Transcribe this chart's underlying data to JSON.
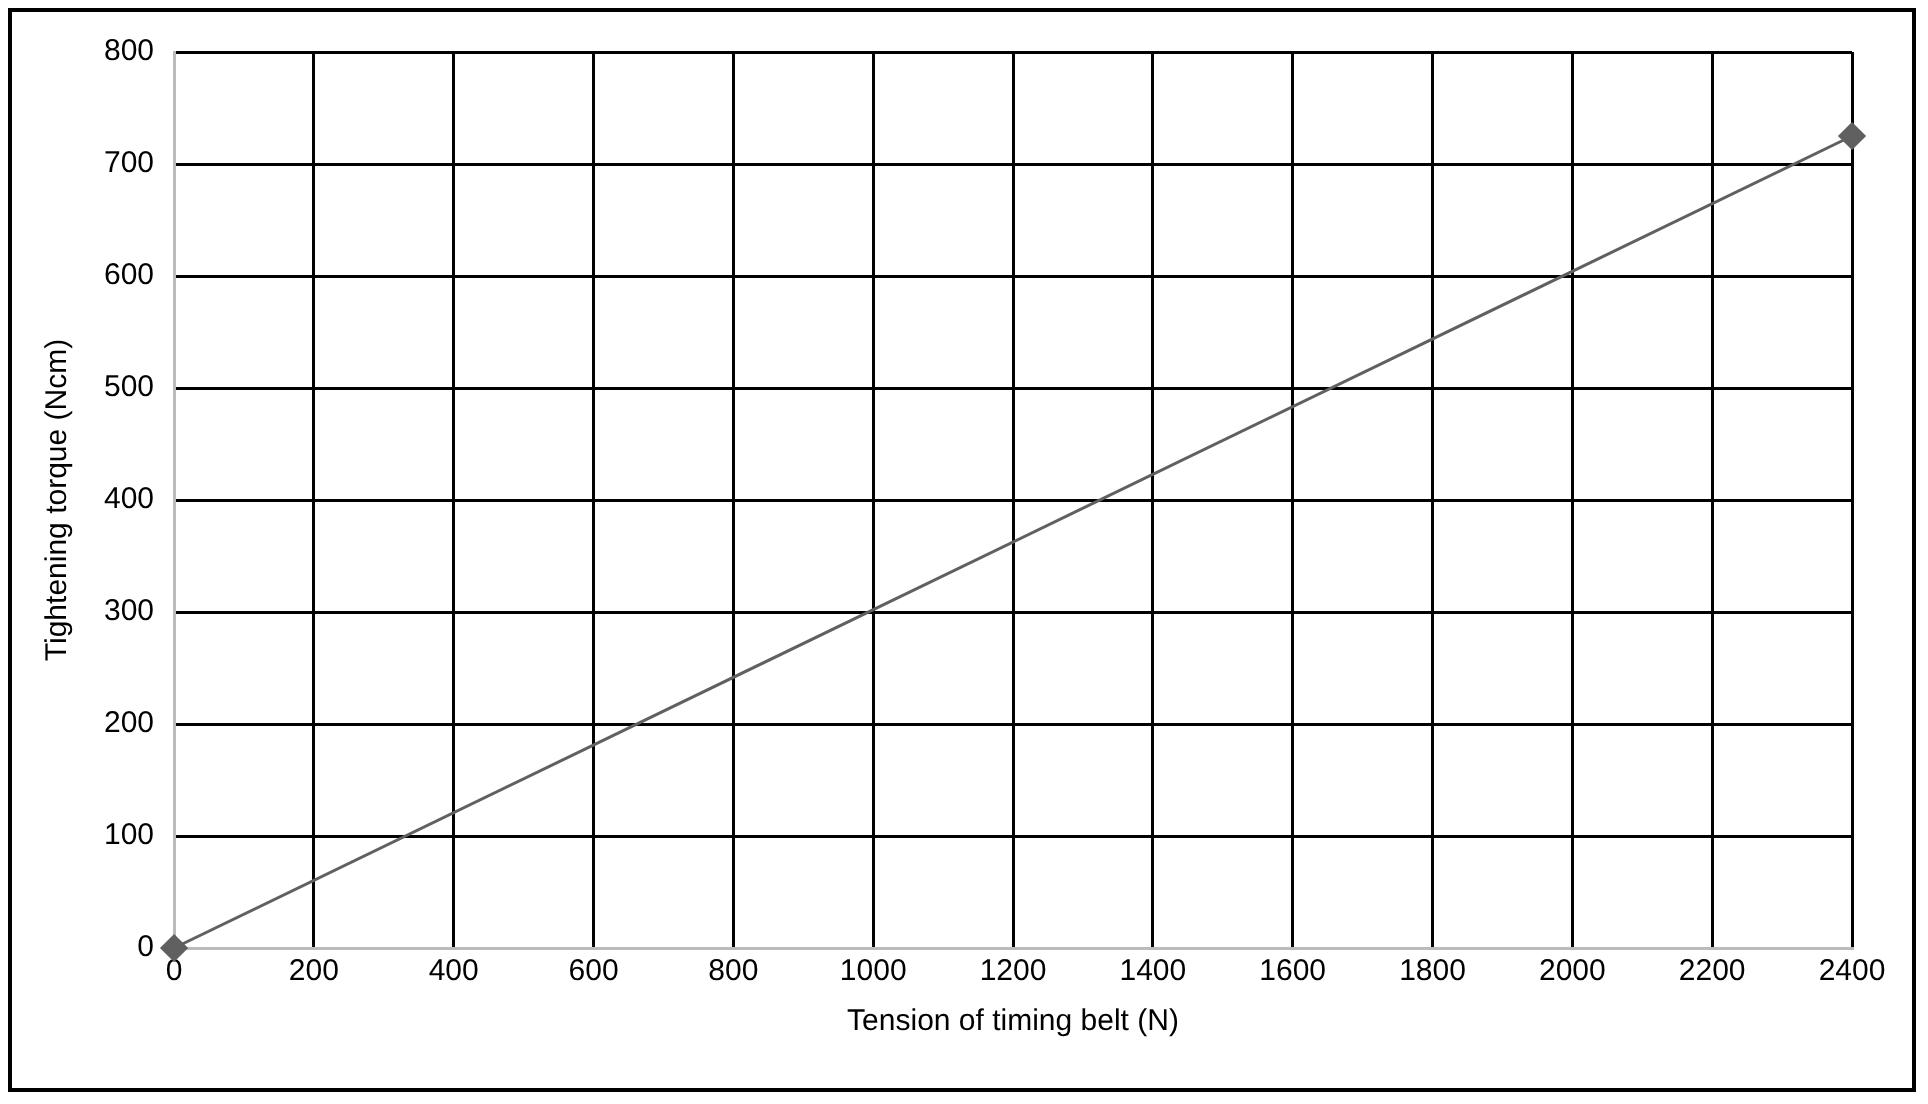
{
  "chart_data": {
    "type": "line",
    "xlabel": "Tension of timing belt (N)",
    "ylabel": "Tightening torque (Ncm)",
    "x": [
      0,
      2400
    ],
    "series": [
      {
        "color": "#606060",
        "values": [
          0,
          725
        ]
      }
    ],
    "xlim": [
      0,
      2400
    ],
    "xticks": [
      0,
      200,
      400,
      600,
      800,
      1000,
      1200,
      1400,
      1600,
      1800,
      2000,
      2200,
      2400
    ],
    "ylim": [
      0,
      800
    ],
    "yticks": [
      0,
      100,
      200,
      300,
      400,
      500,
      600,
      700,
      800
    ],
    "grid": true,
    "legend": false,
    "marker": "diamond",
    "line_style": "solid"
  }
}
